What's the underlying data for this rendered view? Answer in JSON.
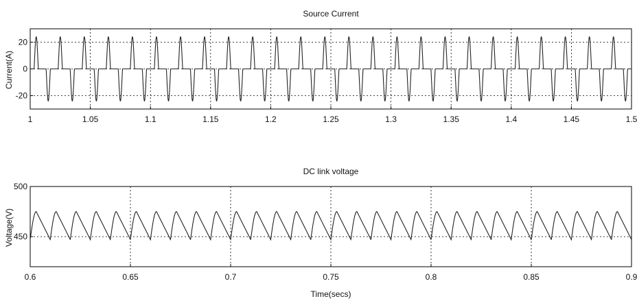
{
  "chart_data": [
    {
      "type": "line",
      "title": "Source Current",
      "xlabel": "",
      "ylabel": "Current(A)",
      "xlim": [
        1,
        1.5
      ],
      "ylim": [
        -30,
        30
      ],
      "xticks": [
        1,
        1.05,
        1.1,
        1.15,
        1.2,
        1.25,
        1.3,
        1.35,
        1.4,
        1.45,
        1.5
      ],
      "xtick_labels": [
        "1",
        "1.05",
        "1.1",
        "1.15",
        "1.2",
        "1.25",
        "1.3",
        "1.35",
        "1.4",
        "1.45",
        "1.5"
      ],
      "yticks": [
        -20,
        0,
        20
      ],
      "ytick_labels": [
        "-20",
        "0",
        "20"
      ],
      "grid": true,
      "series": [
        {
          "waveform": "pulsed rectifier current",
          "frequency_hz": 50,
          "positive_peak_time_in_cycle_s": 0.005,
          "negative_peak_time_in_cycle_s": 0.015,
          "peak_amplitude": 24,
          "pulse_half_width_s": 0.0018
        }
      ]
    },
    {
      "type": "line",
      "title": "DC link voltage",
      "xlabel": "Time(secs)",
      "ylabel": "Voltage(V)",
      "xlim": [
        0.6,
        0.9
      ],
      "ylim": [
        420,
        500
      ],
      "xticks": [
        0.6,
        0.65,
        0.7,
        0.75,
        0.8,
        0.85,
        0.9
      ],
      "xtick_labels": [
        "0.6",
        "0.65",
        "0.7",
        "0.75",
        "0.8",
        "0.85",
        "0.9"
      ],
      "yticks": [
        450,
        500
      ],
      "ytick_labels": [
        "450",
        "500"
      ],
      "grid": true,
      "series": [
        {
          "waveform": "sawtooth ripple",
          "ripple_frequency_hz": 100,
          "min_value": 447,
          "max_value": 475,
          "rise_fraction_of_period": 0.3
        }
      ]
    }
  ]
}
